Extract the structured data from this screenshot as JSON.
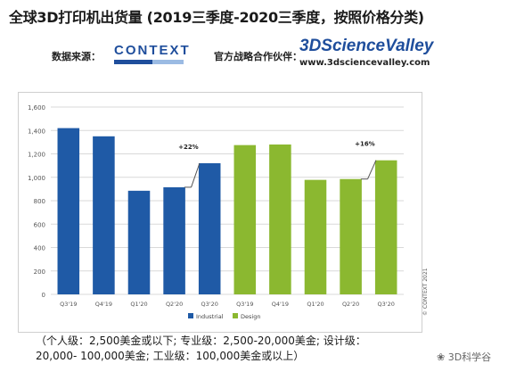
{
  "header": {
    "title": "全球3D打印机出货量 (2019三季度-2020三季度，按照价格分类)",
    "source_label": "数据来源：",
    "source_logo": "CONTEXT",
    "partner_label": "官方战略合作伙伴：",
    "partner_logo": "3DScienceValley",
    "partner_url": "www.3dsciencevalley.com"
  },
  "chart_data": {
    "type": "bar",
    "categories": [
      "Q3'19",
      "Q4'19",
      "Q1'20",
      "Q2'20",
      "Q3'20",
      "Q3'19",
      "Q4'19",
      "Q1'20",
      "Q2'20",
      "Q3'20"
    ],
    "series": [
      {
        "name": "Industrial",
        "values": [
          1420,
          1350,
          885,
          915,
          1120,
          null,
          null,
          null,
          null,
          null
        ],
        "color": "#1f5aa6"
      },
      {
        "name": "Design",
        "values": [
          null,
          null,
          null,
          null,
          null,
          1275,
          1280,
          978,
          985,
          1145
        ],
        "color": "#8bb830"
      }
    ],
    "ylim": [
      0,
      1600
    ],
    "yticks": [
      "0",
      "200",
      "400",
      "600",
      "800",
      "1,000",
      "1,200",
      "1,400",
      "1,600"
    ],
    "annotations": [
      "+22%",
      "+16%"
    ],
    "grid": true,
    "legend": "bottom",
    "copyright": "© CONTEXT 2021"
  },
  "note": {
    "line1": "（个人级：2,500美金或以下; 专业级：2,500-20,000美金; 设计级：",
    "line2": "20,000- 100,000美金; 工业级：100,000美金或以上）"
  },
  "watermark": "3D科学谷"
}
